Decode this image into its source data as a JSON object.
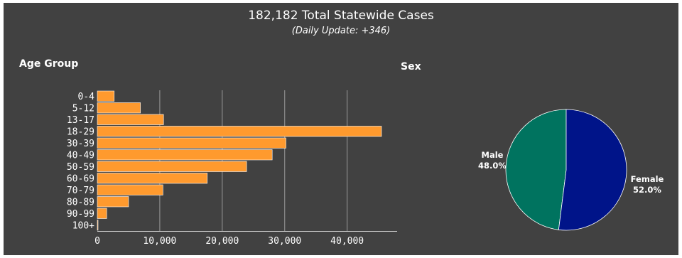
{
  "header": {
    "title": "182,182 Total Statewide Cases",
    "subtitle": "(Daily Update: +346)"
  },
  "colors": {
    "background": "#414141",
    "bar": "#ff9a2e",
    "male": "#00735f",
    "female": "#001489",
    "grid": "#9a9a9a",
    "text": "#ffffff"
  },
  "chart_data": [
    {
      "type": "bar",
      "orientation": "horizontal",
      "title": "Age Group",
      "categories": [
        "0-4",
        "5-12",
        "13-17",
        "18-29",
        "30-39",
        "40-49",
        "50-59",
        "60-69",
        "70-79",
        "80-89",
        "90-99",
        "100+"
      ],
      "values": [
        2700,
        6900,
        10600,
        45500,
        30200,
        28000,
        23900,
        17600,
        10500,
        5000,
        1500,
        60
      ],
      "xlim": [
        0,
        48000
      ],
      "xticks": [
        0,
        10000,
        20000,
        30000,
        40000
      ],
      "xtick_labels": [
        "0",
        "10,000",
        "20,000",
        "30,000",
        "40,000"
      ],
      "grid": true
    },
    {
      "type": "pie",
      "title": "Sex",
      "labels": [
        "Male",
        "Female"
      ],
      "values": [
        48.0,
        52.0
      ],
      "value_labels": [
        "48.0%",
        "52.0%"
      ]
    }
  ]
}
